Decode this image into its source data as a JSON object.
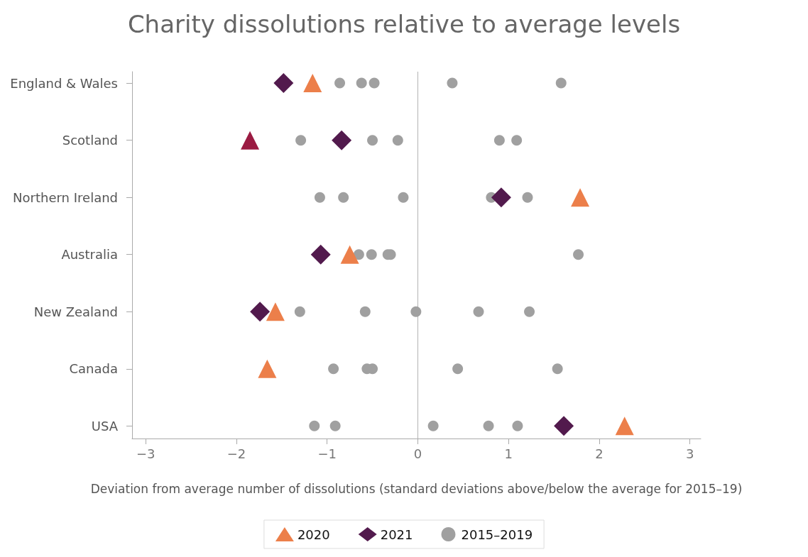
{
  "chart_data": {
    "type": "scatter",
    "title": "Charity dissolutions relative to average levels",
    "xlabel": "Deviation from average number of dissolutions (standard deviations above/below the average for 2015–19)",
    "orientation": "horizontal",
    "categories": [
      "England & Wales",
      "Scotland",
      "Northern Ireland",
      "Australia",
      "New Zealand",
      "Canada",
      "USA"
    ],
    "xlim": [
      -3.15,
      3.12
    ],
    "xticks": [
      {
        "value": -3,
        "label": "−3"
      },
      {
        "value": -2,
        "label": "−2"
      },
      {
        "value": -1,
        "label": "−1"
      },
      0,
      1,
      2,
      3
    ],
    "ref_lines": [
      {
        "axis": "x",
        "value": 0,
        "color": "#b3b3b3"
      }
    ],
    "grid": false,
    "legend": "bottom",
    "series": [
      {
        "name": "2020",
        "color": "#ec7f4a",
        "marker": "triangle",
        "colors": [
          "#ec7f4a",
          "#9b1b42",
          "#ec7f4a",
          "#ec7f4a",
          "#ec7f4a",
          "#ec7f4a",
          "#ec7f4a"
        ],
        "values": [
          -1.16,
          -1.85,
          1.79,
          -0.75,
          -1.57,
          -1.66,
          2.28
        ]
      },
      {
        "name": "2021",
        "color": "#521a4d",
        "marker": "diamond",
        "values": [
          -1.48,
          -0.84,
          0.92,
          -1.07,
          -1.74,
          null,
          1.61
        ]
      },
      {
        "name": "2015–2019",
        "color": "#a0a0a0",
        "marker": "circle",
        "values": [
          -0.86,
          -1.29,
          -1.08,
          -0.65,
          -1.3,
          -0.93,
          -1.14
        ]
      },
      {
        "color": "#a0a0a0",
        "marker": "circle",
        "values": [
          -0.62,
          -0.5,
          -0.82,
          -0.51,
          -0.58,
          -0.56,
          -0.91
        ]
      },
      {
        "color": "#a0a0a0",
        "marker": "circle",
        "values": [
          -0.48,
          -0.22,
          -0.16,
          -0.33,
          -0.02,
          -0.5,
          0.17
        ]
      },
      {
        "color": "#a0a0a0",
        "marker": "circle",
        "values": [
          0.38,
          0.9,
          0.81,
          -0.3,
          0.67,
          0.44,
          0.78
        ]
      },
      {
        "color": "#a0a0a0",
        "marker": "circle",
        "values": [
          1.58,
          1.09,
          1.21,
          1.77,
          1.23,
          1.54,
          1.1
        ]
      }
    ]
  }
}
